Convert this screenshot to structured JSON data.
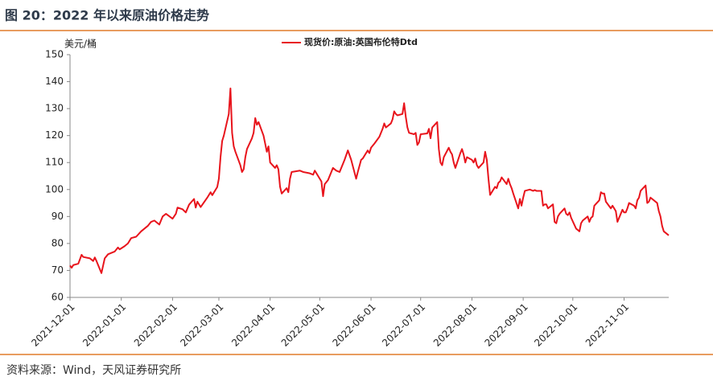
{
  "chart_data": {
    "type": "line",
    "title": "图 20：2022 年以来原油价格走势",
    "y_label": "美元/桶",
    "source": "资料来源：Wind，天风证券研究所",
    "legend": "top",
    "x": [
      "2021-12-01",
      "2021-12-02",
      "2021-12-03",
      "2021-12-06",
      "2021-12-08",
      "2021-12-09",
      "2021-12-13",
      "2021-12-15",
      "2021-12-16",
      "2021-12-17",
      "2021-12-20",
      "2021-12-22",
      "2021-12-24",
      "2021-12-28",
      "2021-12-30",
      "2021-12-31",
      "2022-01-03",
      "2022-01-05",
      "2022-01-07",
      "2022-01-10",
      "2022-01-13",
      "2022-01-17",
      "2022-01-19",
      "2022-01-21",
      "2022-01-24",
      "2022-01-26",
      "2022-01-28",
      "2022-02-01",
      "2022-02-03",
      "2022-02-04",
      "2022-02-07",
      "2022-02-09",
      "2022-02-11",
      "2022-02-14",
      "2022-02-15",
      "2022-02-16",
      "2022-02-18",
      "2022-02-22",
      "2022-02-24",
      "2022-02-25",
      "2022-02-28",
      "2022-03-01",
      "2022-03-02",
      "2022-03-03",
      "2022-03-04",
      "2022-03-07",
      "2022-03-08",
      "2022-03-09",
      "2022-03-10",
      "2022-03-11",
      "2022-03-14",
      "2022-03-15",
      "2022-03-16",
      "2022-03-17",
      "2022-03-18",
      "2022-03-21",
      "2022-03-22",
      "2022-03-23",
      "2022-03-24",
      "2022-03-25",
      "2022-03-28",
      "2022-03-29",
      "2022-03-30",
      "2022-03-31",
      "2022-04-01",
      "2022-04-04",
      "2022-04-05",
      "2022-04-06",
      "2022-04-07",
      "2022-04-08",
      "2022-04-11",
      "2022-04-12",
      "2022-04-13",
      "2022-04-14",
      "2022-04-19",
      "2022-04-21",
      "2022-04-25",
      "2022-04-27",
      "2022-04-28",
      "2022-05-02",
      "2022-05-03",
      "2022-05-04",
      "2022-05-06",
      "2022-05-09",
      "2022-05-11",
      "2022-05-13",
      "2022-05-16",
      "2022-05-18",
      "2022-05-20",
      "2022-05-23",
      "2022-05-24",
      "2022-05-26",
      "2022-05-27",
      "2022-05-30",
      "2022-05-31",
      "2022-06-01",
      "2022-06-03",
      "2022-06-06",
      "2022-06-08",
      "2022-06-09",
      "2022-06-10",
      "2022-06-13",
      "2022-06-14",
      "2022-06-15",
      "2022-06-16",
      "2022-06-17",
      "2022-06-20",
      "2022-06-21",
      "2022-06-22",
      "2022-06-23",
      "2022-06-24",
      "2022-06-27",
      "2022-06-28",
      "2022-06-29",
      "2022-06-30",
      "2022-07-01",
      "2022-07-05",
      "2022-07-06",
      "2022-07-07",
      "2022-07-08",
      "2022-07-11",
      "2022-07-12",
      "2022-07-13",
      "2022-07-14",
      "2022-07-15",
      "2022-07-18",
      "2022-07-19",
      "2022-07-20",
      "2022-07-21",
      "2022-07-22",
      "2022-07-25",
      "2022-07-26",
      "2022-07-27",
      "2022-07-28",
      "2022-07-29",
      "2022-08-01",
      "2022-08-02",
      "2022-08-03",
      "2022-08-04",
      "2022-08-05",
      "2022-08-08",
      "2022-08-09",
      "2022-08-10",
      "2022-08-11",
      "2022-08-12",
      "2022-08-15",
      "2022-08-16",
      "2022-08-17",
      "2022-08-18",
      "2022-08-19",
      "2022-08-22",
      "2022-08-23",
      "2022-08-24",
      "2022-08-25",
      "2022-08-26",
      "2022-08-29",
      "2022-08-30",
      "2022-08-31",
      "2022-09-01",
      "2022-09-02",
      "2022-09-05",
      "2022-09-07",
      "2022-09-08",
      "2022-09-09",
      "2022-09-12",
      "2022-09-13",
      "2022-09-14",
      "2022-09-15",
      "2022-09-16",
      "2022-09-19",
      "2022-09-20",
      "2022-09-21",
      "2022-09-22",
      "2022-09-23",
      "2022-09-26",
      "2022-09-27",
      "2022-09-28",
      "2022-09-29",
      "2022-09-30",
      "2022-10-03",
      "2022-10-04",
      "2022-10-05",
      "2022-10-06",
      "2022-10-07",
      "2022-10-10",
      "2022-10-11",
      "2022-10-12",
      "2022-10-13",
      "2022-10-14",
      "2022-10-17",
      "2022-10-18",
      "2022-10-19",
      "2022-10-20",
      "2022-10-21",
      "2022-10-24",
      "2022-10-25",
      "2022-10-26",
      "2022-10-27",
      "2022-10-28",
      "2022-10-31",
      "2022-11-01",
      "2022-11-02",
      "2022-11-03",
      "2022-11-04",
      "2022-11-07",
      "2022-11-08",
      "2022-11-09",
      "2022-11-10",
      "2022-11-11",
      "2022-11-14",
      "2022-11-15",
      "2022-11-16",
      "2022-11-17",
      "2022-11-18",
      "2022-11-21",
      "2022-11-22",
      "2022-11-23",
      "2022-11-24",
      "2022-11-25",
      "2022-11-28"
    ],
    "series": [
      {
        "name": "现货价:原油:英国布伦特Dtd",
        "color": "#e8141c",
        "values": [
          71.8,
          71,
          72,
          72.5,
          75.8,
          75,
          74.5,
          73.5,
          74.8,
          73.5,
          69,
          74.5,
          76,
          77,
          78.5,
          77.8,
          79,
          80,
          82,
          82.5,
          84.5,
          86.5,
          88,
          88.5,
          87,
          90,
          91,
          89.2,
          91,
          93.3,
          92.7,
          91.5,
          94.4,
          96.5,
          93.3,
          95.5,
          93.5,
          97,
          99,
          97.9,
          100.9,
          104,
          112,
          118,
          120,
          128,
          137.5,
          121,
          116,
          114,
          109,
          106.5,
          107.5,
          112,
          115,
          119,
          121,
          126.5,
          124,
          125,
          120,
          117,
          114,
          116,
          110,
          108,
          109,
          107.5,
          101,
          98.5,
          100.5,
          99,
          104,
          106.5,
          107,
          106.5,
          106,
          105.5,
          107,
          103,
          97.5,
          102,
          103.5,
          108,
          107,
          106.5,
          111,
          114.5,
          111,
          104,
          106.5,
          111,
          111.5,
          114.5,
          113.5,
          115.5,
          117,
          119.5,
          122.5,
          124.5,
          123,
          124.5,
          126,
          129,
          128,
          127.5,
          128,
          132,
          127,
          123,
          121,
          120.5,
          121,
          116.5,
          117.5,
          120.5,
          120.8,
          122.5,
          119,
          123,
          125,
          115,
          110,
          109,
          112,
          115.5,
          114,
          113,
          110,
          108,
          113.5,
          115,
          113,
          110,
          112,
          111,
          110,
          111.5,
          109,
          108,
          110,
          114,
          111,
          104,
          98,
          101,
          100.5,
          102.5,
          103,
          104.5,
          102,
          104,
          102,
          100.5,
          98.5,
          93,
          96.5,
          94,
          97,
          99.5,
          100,
          99.5,
          99.8,
          99.5,
          99.5,
          94,
          94.5,
          94.5,
          93,
          94.5,
          88,
          87.5,
          90,
          91,
          93,
          91,
          90.5,
          91.5,
          89.5,
          85.5,
          85,
          84.5,
          87.5,
          88.5,
          90,
          88,
          89.5,
          90,
          94,
          96,
          99,
          98.5,
          98.5,
          95.5,
          93,
          94,
          93,
          92,
          88,
          92.5,
          91.5,
          91.5,
          93,
          95,
          94,
          93,
          96,
          97,
          99.5,
          101.5,
          95,
          95.5,
          97,
          96.5,
          95,
          92,
          90,
          86.5,
          84.5,
          83
        ]
      }
    ],
    "xlim": [
      "2021-12-01",
      "2022-11-28"
    ],
    "xticks": [
      "2021-12-01",
      "2022-01-01",
      "2022-02-01",
      "2022-03-01",
      "2022-04-01",
      "2022-05-01",
      "2022-06-01",
      "2022-07-01",
      "2022-08-01",
      "2022-09-01",
      "2022-10-01",
      "2022-11-01"
    ],
    "ylim": [
      60,
      150
    ],
    "yticks": [
      60,
      70,
      80,
      90,
      100,
      110,
      120,
      130,
      140,
      150
    ],
    "grid": false
  }
}
